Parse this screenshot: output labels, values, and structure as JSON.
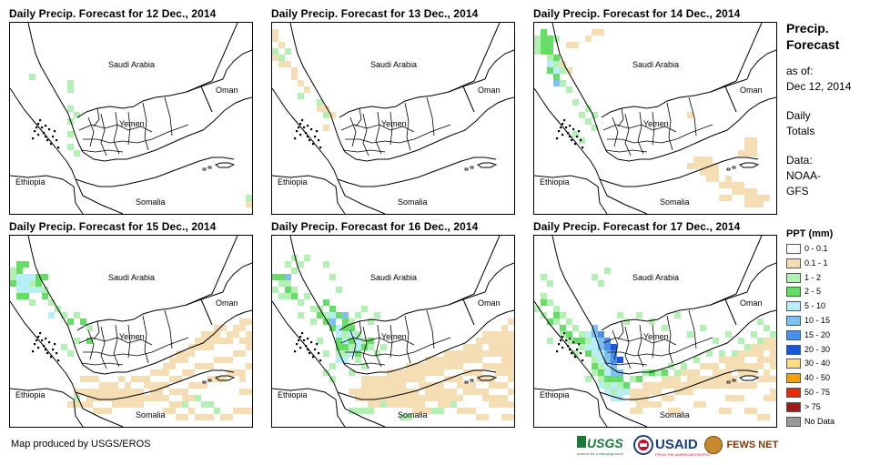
{
  "panels": [
    {
      "title": "Daily Precip. Forecast for 12 Dec., 2014"
    },
    {
      "title": "Daily Precip. Forecast for 13 Dec., 2014"
    },
    {
      "title": "Daily Precip. Forecast for 14 Dec., 2014"
    },
    {
      "title": "Daily Precip. Forecast for 15 Dec., 2014"
    },
    {
      "title": "Daily Precip. Forecast for 16 Dec., 2014"
    },
    {
      "title": "Daily Precip. Forecast for 17 Dec., 2014"
    }
  ],
  "country_labels": {
    "saudi_arabia": "Saudi Arabia",
    "oman": "Oman",
    "yemen": "Yemen",
    "ethiopia": "Ethiopia",
    "somalia": "Somalia"
  },
  "legend": {
    "title_line1": "Precip.",
    "title_line2": "Forecast",
    "asof_label": "as of:",
    "asof_date": "Dec 12, 2014",
    "totals_line1": "Daily",
    "totals_line2": "Totals",
    "data_label": "Data:",
    "data_line1": "NOAA-",
    "data_line2": "GFS",
    "ppt_label": "PPT (mm)",
    "classes": [
      {
        "label": "0 - 0.1",
        "color": "#ffffff"
      },
      {
        "label": "0.1 - 1",
        "color": "#f5deb3"
      },
      {
        "label": "1 - 2",
        "color": "#b3f0b3"
      },
      {
        "label": "2 - 5",
        "color": "#66dd66"
      },
      {
        "label": "5 - 10",
        "color": "#b7eef7"
      },
      {
        "label": "10 - 15",
        "color": "#80c0f0"
      },
      {
        "label": "15 - 20",
        "color": "#4a90e8"
      },
      {
        "label": "20 - 30",
        "color": "#1a55e0"
      },
      {
        "label": "30 - 40",
        "color": "#ffe080"
      },
      {
        "label": "40 - 50",
        "color": "#f5a000"
      },
      {
        "label": "50 - 75",
        "color": "#e82a00"
      },
      {
        "label": "> 75",
        "color": "#a01818"
      },
      {
        "label": "No Data",
        "color": "#999999"
      }
    ]
  },
  "footer": {
    "credit": "Map produced by USGS/EROS",
    "logos": {
      "usgs": "USGS",
      "usgs_tagline": "science for a changing world",
      "usaid": "USAID",
      "usaid_tagline": "FROM THE AMERICAN PEOPLE",
      "fewsnet": "FEWS NET"
    }
  },
  "colors": {
    "border": "#000000",
    "background": "#ffffff"
  }
}
